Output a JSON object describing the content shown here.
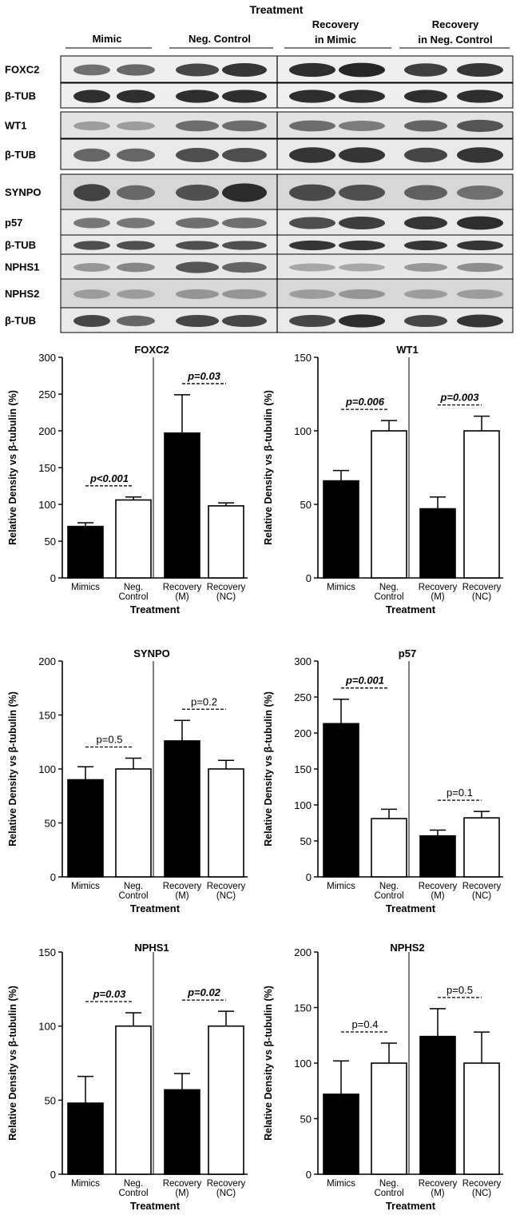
{
  "blot_panel": {
    "title": "Treatment",
    "groups": [
      {
        "line1": "Mimic",
        "line2": ""
      },
      {
        "line1": "Neg. Control",
        "line2": ""
      },
      {
        "line1": "Recovery",
        "line2": "in Mimic"
      },
      {
        "line1": "Recovery",
        "line2": "in Neg. Control"
      }
    ],
    "rows": [
      {
        "label": "FOXC2",
        "intensity": [
          0.55,
          0.6,
          0.8,
          0.9,
          0.95,
          1.0,
          0.85,
          0.9
        ],
        "bg": 0.05
      },
      {
        "label": "β-TUB",
        "intensity": [
          0.95,
          0.95,
          0.95,
          0.95,
          0.95,
          0.95,
          0.95,
          0.95
        ],
        "bg": 0.05
      },
      {
        "label": "WT1",
        "intensity": [
          0.25,
          0.25,
          0.55,
          0.55,
          0.55,
          0.45,
          0.6,
          0.7
        ],
        "bg": 0.15
      },
      {
        "label": "β-TUB",
        "intensity": [
          0.6,
          0.6,
          0.75,
          0.75,
          0.9,
          0.9,
          0.8,
          0.9
        ],
        "bg": 0.1
      },
      {
        "label": "SYNPO",
        "intensity": [
          0.8,
          0.55,
          0.7,
          0.95,
          0.75,
          0.7,
          0.6,
          0.5
        ],
        "bg": 0.25
      },
      {
        "label": "p57",
        "intensity": [
          0.5,
          0.5,
          0.55,
          0.55,
          0.75,
          0.85,
          0.9,
          0.95
        ],
        "bg": 0.1
      },
      {
        "label": "β-TUB",
        "intensity": [
          0.75,
          0.75,
          0.75,
          0.75,
          0.9,
          0.9,
          0.9,
          0.9
        ],
        "bg": 0.1
      },
      {
        "label": "NPHS1",
        "intensity": [
          0.3,
          0.4,
          0.7,
          0.6,
          0.2,
          0.2,
          0.3,
          0.35
        ],
        "bg": 0.12
      },
      {
        "label": "NPHS2",
        "intensity": [
          0.2,
          0.2,
          0.25,
          0.25,
          0.2,
          0.25,
          0.2,
          0.2
        ],
        "bg": 0.25
      },
      {
        "label": "β-TUB",
        "intensity": [
          0.8,
          0.6,
          0.8,
          0.8,
          0.8,
          0.95,
          0.8,
          0.9
        ],
        "bg": 0.1
      }
    ]
  },
  "chart_data": [
    {
      "type": "bar",
      "title": "FOXC2",
      "ylabel": "Relative Density vs β-tubulin (%)",
      "xlabel": "Treatment",
      "ylim": [
        0,
        300
      ],
      "yticks": [
        "0",
        "50",
        "100",
        "150",
        "200",
        "250",
        "300"
      ],
      "categories": [
        "Mimics",
        "Neg. Control",
        "Recovery (M)",
        "Recovery (NC)"
      ],
      "values": [
        70,
        106,
        197,
        98
      ],
      "errors": [
        5,
        4,
        52,
        4
      ],
      "annotations": [
        {
          "text": "p<0.001",
          "bold": true,
          "between": [
            0,
            1
          ]
        },
        {
          "text": "p=0.03",
          "bold": true,
          "between": [
            2,
            3
          ]
        }
      ]
    },
    {
      "type": "bar",
      "title": "WT1",
      "ylabel": "Relative Density vs β-tubulin (%)",
      "xlabel": "Treatment",
      "ylim": [
        0,
        150
      ],
      "yticks": [
        "0",
        "50",
        "100",
        "150"
      ],
      "categories": [
        "Mimics",
        "Neg. Control",
        "Recovery (M)",
        "Recovery (NC)"
      ],
      "values": [
        66,
        100,
        47,
        100
      ],
      "errors": [
        7,
        7,
        8,
        10
      ],
      "annotations": [
        {
          "text": "p=0.006",
          "bold": true,
          "between": [
            0,
            1
          ]
        },
        {
          "text": "p=0.003",
          "bold": true,
          "between": [
            2,
            3
          ]
        }
      ]
    },
    {
      "type": "bar",
      "title": "SYNPO",
      "ylabel": "Relative Density vs β-tubulin (%)",
      "xlabel": "Treatment",
      "ylim": [
        0,
        200
      ],
      "yticks": [
        "0",
        "50",
        "100",
        "150",
        "200"
      ],
      "categories": [
        "Mimics",
        "Neg. Control",
        "Recovery (M)",
        "Recovery (NC)"
      ],
      "values": [
        90,
        100,
        126,
        100
      ],
      "errors": [
        12,
        10,
        19,
        8
      ],
      "annotations": [
        {
          "text": "p=0.5",
          "bold": false,
          "between": [
            0,
            1
          ]
        },
        {
          "text": "p=0.2",
          "bold": false,
          "between": [
            2,
            3
          ]
        }
      ]
    },
    {
      "type": "bar",
      "title": "p57",
      "ylabel": "Relative Density vs β-tubulin (%)",
      "xlabel": "Treatment",
      "ylim": [
        0,
        300
      ],
      "yticks": [
        "0",
        "50",
        "100",
        "150",
        "200",
        "250",
        "300"
      ],
      "categories": [
        "Mimics",
        "Neg. Control",
        "Recovery (M)",
        "Recovery (NC)"
      ],
      "values": [
        213,
        81,
        57,
        82
      ],
      "errors": [
        34,
        13,
        8,
        9
      ],
      "annotations": [
        {
          "text": "p=0.001",
          "bold": true,
          "between": [
            0,
            1
          ]
        },
        {
          "text": "p=0.1",
          "bold": false,
          "between": [
            2,
            3
          ]
        }
      ]
    },
    {
      "type": "bar",
      "title": "NPHS1",
      "ylabel": "Relative Density vs β-tubulin (%)",
      "xlabel": "Treatment",
      "ylim": [
        0,
        150
      ],
      "yticks": [
        "0",
        "50",
        "100",
        "150"
      ],
      "categories": [
        "Mimics",
        "Neg. Control",
        "Recovery (M)",
        "Recovery (NC)"
      ],
      "values": [
        48,
        100,
        57,
        100
      ],
      "errors": [
        18,
        9,
        11,
        10
      ],
      "annotations": [
        {
          "text": "p=0.03",
          "bold": true,
          "between": [
            0,
            1
          ]
        },
        {
          "text": "p=0.02",
          "bold": true,
          "between": [
            2,
            3
          ]
        }
      ]
    },
    {
      "type": "bar",
      "title": "NPHS2",
      "ylabel": "Relative Density vs β-tubulin (%)",
      "xlabel": "Treatment",
      "ylim": [
        0,
        200
      ],
      "yticks": [
        "0",
        "50",
        "100",
        "150",
        "200"
      ],
      "categories": [
        "Mimics",
        "Neg. Control",
        "Recovery (M)",
        "Recovery (NC)"
      ],
      "values": [
        72,
        100,
        124,
        100
      ],
      "errors": [
        30,
        18,
        25,
        28
      ],
      "annotations": [
        {
          "text": "p=0.4",
          "bold": false,
          "between": [
            0,
            1
          ]
        },
        {
          "text": "p=0.5",
          "bold": false,
          "between": [
            2,
            3
          ]
        }
      ]
    }
  ],
  "styles": {
    "bar_fills": [
      "#000000",
      "#ffffff",
      "#000000",
      "#ffffff"
    ],
    "band_color": "#1a1a1a"
  }
}
